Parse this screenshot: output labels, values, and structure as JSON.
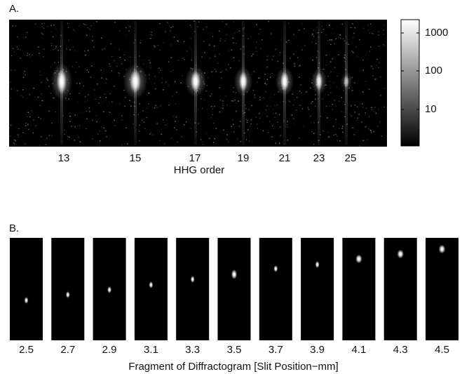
{
  "panel_a": {
    "label": "A.",
    "x_ticks": [
      "13",
      "15",
      "17",
      "19",
      "21",
      "23",
      "25"
    ],
    "x_label": "HHG order",
    "colorbar_ticks": [
      "1000",
      "100",
      "10"
    ]
  },
  "panel_b": {
    "label": "B.",
    "frames": [
      "2.5",
      "2.7",
      "2.9",
      "3.1",
      "3.3",
      "3.5",
      "3.7",
      "3.9",
      "4.1",
      "4.3",
      "4.5"
    ],
    "x_label": "Fragment of Diffractogram [Slit Position−mm]"
  }
}
